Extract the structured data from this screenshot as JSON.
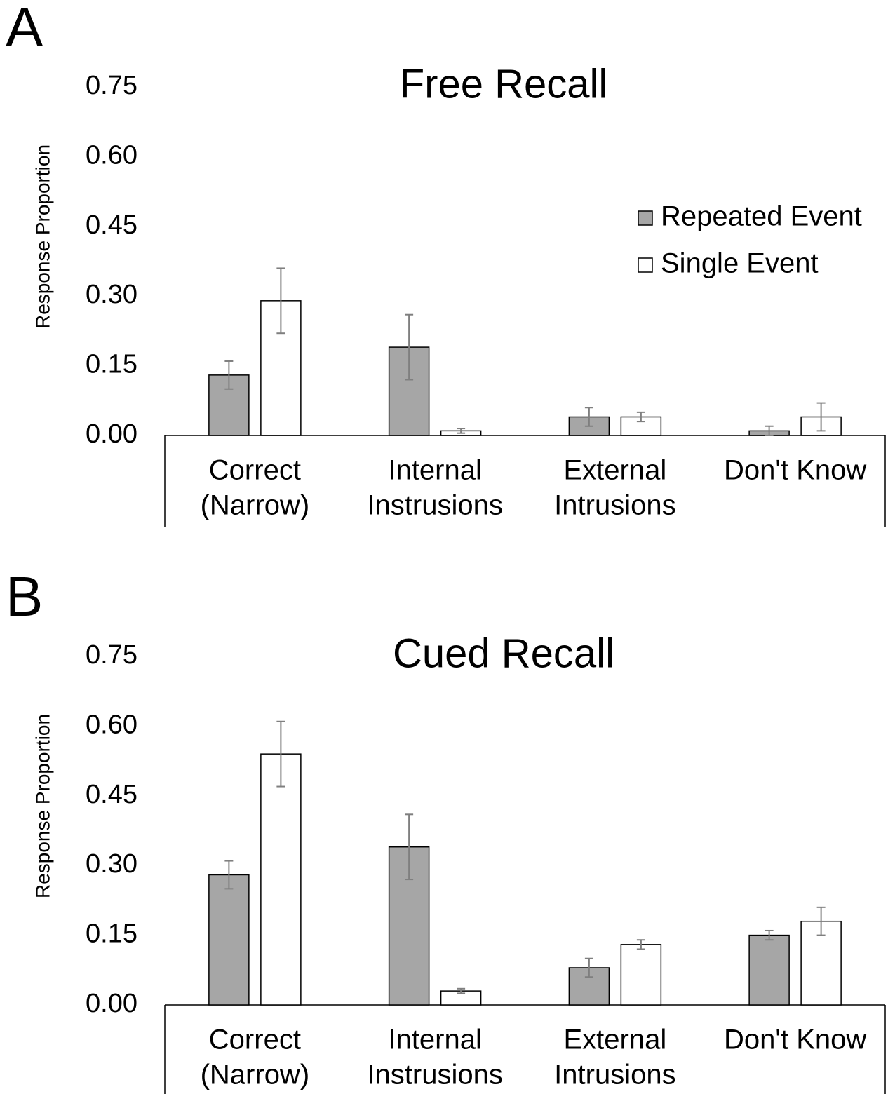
{
  "chart_data": [
    {
      "type": "bar",
      "panel": "A",
      "title": "Free Recall",
      "ylabel": "Response Proportion",
      "categories": [
        [
          "Correct",
          "(Narrow)"
        ],
        [
          "Internal",
          "Instrusions"
        ],
        [
          "External",
          "Intrusions"
        ],
        [
          "Don't Know"
        ]
      ],
      "series": [
        {
          "name": "Repeated Event",
          "color": "#a6a6a6",
          "values": [
            0.13,
            0.19,
            0.04,
            0.01
          ],
          "errors": [
            0.03,
            0.07,
            0.02,
            0.01
          ]
        },
        {
          "name": "Single Event",
          "color": "#ffffff",
          "values": [
            0.29,
            0.01,
            0.04,
            0.04
          ],
          "errors": [
            0.07,
            0.005,
            0.01,
            0.03
          ]
        }
      ],
      "ylim": [
        0,
        0.75
      ],
      "yticks": [
        {
          "value": 0,
          "label": "0.00"
        },
        {
          "value": 0.15,
          "label": "0.15"
        },
        {
          "value": 0.3,
          "label": "0.30"
        },
        {
          "value": 0.45,
          "label": "0.45"
        },
        {
          "value": 0.6,
          "label": "0.60"
        },
        {
          "value": 0.75,
          "label": "0.75"
        }
      ],
      "legend": "upper right",
      "grid": false
    },
    {
      "type": "bar",
      "panel": "B",
      "title": "Cued Recall",
      "ylabel": "Response Proportion",
      "categories": [
        [
          "Correct",
          "(Narrow)"
        ],
        [
          "Internal",
          "Instrusions"
        ],
        [
          "External",
          "Intrusions"
        ],
        [
          "Don't Know"
        ]
      ],
      "series": [
        {
          "name": "Repeated Event",
          "color": "#a6a6a6",
          "values": [
            0.28,
            0.34,
            0.08,
            0.15
          ],
          "errors": [
            0.03,
            0.07,
            0.02,
            0.01
          ]
        },
        {
          "name": "Single Event",
          "color": "#ffffff",
          "values": [
            0.54,
            0.03,
            0.13,
            0.18
          ],
          "errors": [
            0.07,
            0.005,
            0.01,
            0.03
          ]
        }
      ],
      "ylim": [
        0,
        0.75
      ],
      "yticks": [
        {
          "value": 0,
          "label": "0.00"
        },
        {
          "value": 0.15,
          "label": "0.15"
        },
        {
          "value": 0.3,
          "label": "0.30"
        },
        {
          "value": 0.45,
          "label": "0.45"
        },
        {
          "value": 0.6,
          "label": "0.60"
        },
        {
          "value": 0.75,
          "label": "0.75"
        }
      ],
      "grid": false
    }
  ]
}
